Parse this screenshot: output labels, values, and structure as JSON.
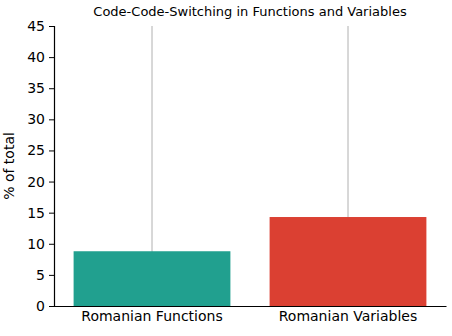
{
  "chart_data": {
    "type": "bar",
    "title": "Code-Code-Switching in Functions and Variables",
    "y_label": "% of total",
    "categories": [
      "Romanian Functions",
      "Romanian Variables"
    ],
    "values": [
      8.8,
      14.3
    ],
    "colors": [
      "#21a08f",
      "#db4032"
    ],
    "ylim": [
      0,
      45
    ],
    "yticks": [
      0,
      5,
      10,
      15,
      20,
      25,
      30,
      35,
      40,
      45
    ],
    "grid": "x"
  }
}
